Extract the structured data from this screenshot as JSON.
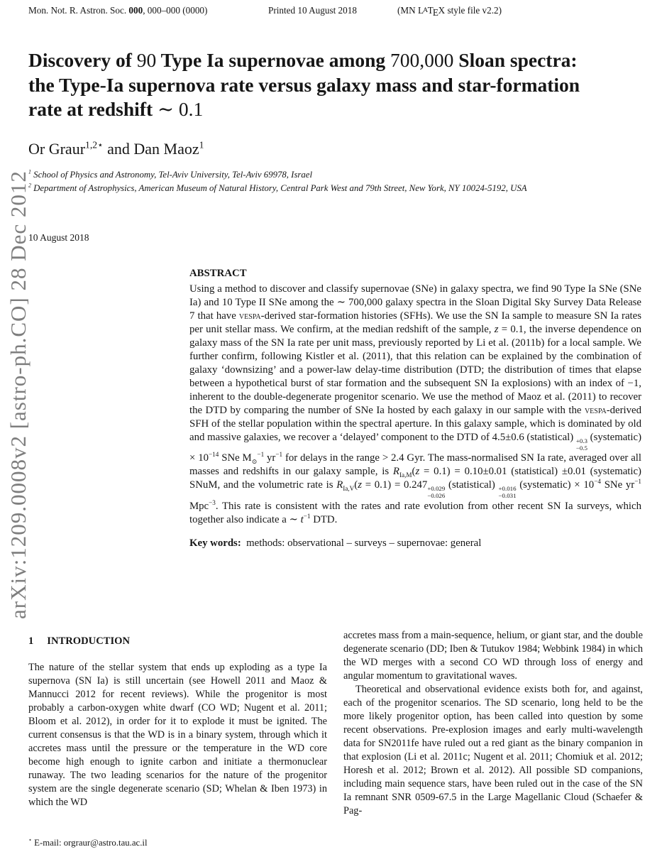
{
  "header": {
    "journal_ref": [
      {
        "t": "Mon. Not. R. Astron. Soc. "
      },
      {
        "t": "000",
        "s": "b"
      },
      {
        "t": ", 000–000 (0000)"
      }
    ],
    "printed": "Printed 10 August 2018",
    "style_note": [
      {
        "t": "(MN L"
      },
      {
        "t": "A",
        "s": "lA"
      },
      {
        "t": "T"
      },
      {
        "t": "E",
        "s": "lE"
      },
      {
        "t": "X style file v2.2)"
      }
    ]
  },
  "sidebar_text": "arXiv:1209.0008v2  [astro-ph.CO]  28 Dec 2012",
  "title": [
    {
      "t": "Discovery of "
    },
    {
      "t": "90",
      "s": "mathnum"
    },
    {
      "t": " Type Ia supernovae among "
    },
    {
      "t": "700,000",
      "s": "mathnum"
    },
    {
      "t": " Sloan spectra: the Type-Ia supernova rate versus galaxy mass and star-formation rate at redshift "
    },
    {
      "t": "∼ 0.1",
      "s": "mathnum"
    }
  ],
  "authors": [
    {
      "t": "Or Graur"
    },
    {
      "t": "1,2⋆",
      "s": "sup"
    },
    {
      "t": " and Dan Maoz"
    },
    {
      "t": "1",
      "s": "sup"
    }
  ],
  "affiliations": [
    [
      {
        "t": "1",
        "s": "sup"
      },
      {
        "t": " School of Physics and Astronomy, Tel-Aviv University, Tel-Aviv 69978, Israel"
      }
    ],
    [
      {
        "t": "2",
        "s": "sup"
      },
      {
        "t": " Department of Astrophysics, American Museum of Natural History, Central Park West and 79th Street, New York, NY 10024-5192, USA"
      }
    ]
  ],
  "date": "10 August 2018",
  "abstract": {
    "label": "ABSTRACT",
    "body": [
      {
        "t": "Using a method to discover and classify supernovae (SNe) in galaxy spectra, we find 90 Type Ia SNe (SNe Ia) and 10 Type II SNe among the ∼ 700,000 galaxy spectra in the Sloan Digital Sky Survey Data Release 7 that have "
      },
      {
        "t": "vespa",
        "s": "sc"
      },
      {
        "t": "-derived star-formation histories (SFHs). We use the SN Ia sample to measure SN Ia rates per unit stellar mass. We confirm, at the median redshift of the sample, "
      },
      {
        "t": "z",
        "s": "it"
      },
      {
        "t": " = 0.1, the inverse dependence on galaxy mass of the SN Ia rate per unit mass, previously reported by Li et al. (2011b) for a local sample. We further confirm, following Kistler et al. (2011), that this relation can be explained by the combination of galaxy ‘downsizing’ and a power-law delay-time distribution (DTD; the distribution of times that elapse between a hypothetical burst of star formation and the subsequent SN Ia explosions) with an index of −1, inherent to the double-degenerate progenitor scenario. We use the method of Maoz et al. (2011) to recover the DTD by comparing the number of SNe Ia hosted by each galaxy in our sample with the "
      },
      {
        "t": "vespa",
        "s": "sc"
      },
      {
        "t": "-derived SFH of the stellar population within the spectral aperture. In this galaxy sample, which is dominated by old and massive galaxies, we recover a ‘delayed’ component to the DTD of 4.5±0.6 (statistical) "
      },
      {
        "t": "+0.3|−0.5",
        "s": "stack"
      },
      {
        "t": " (systematic) × 10"
      },
      {
        "t": "−14",
        "s": "sup"
      },
      {
        "t": " SNe M"
      },
      {
        "t": "⊙",
        "s": "sub"
      },
      {
        "t": "−1",
        "s": "sup"
      },
      {
        "t": " yr"
      },
      {
        "t": "−1",
        "s": "sup"
      },
      {
        "t": " for delays in the range > 2.4 Gyr. The mass-normalised SN Ia rate, averaged over all masses and redshifts in our galaxy sample, is "
      },
      {
        "t": "R",
        "s": "it"
      },
      {
        "t": "Ia,M",
        "s": "sub"
      },
      {
        "t": "("
      },
      {
        "t": "z",
        "s": "it"
      },
      {
        "t": " = 0.1) = 0.10±0.01 (statistical) ±0.01 (systematic) SNuM, and the volumetric rate is "
      },
      {
        "t": "R",
        "s": "it"
      },
      {
        "t": "Ia,V",
        "s": "sub"
      },
      {
        "t": "("
      },
      {
        "t": "z",
        "s": "it"
      },
      {
        "t": " = 0.1) = 0.247"
      },
      {
        "t": "+0.029|−0.026",
        "s": "stack"
      },
      {
        "t": " (statistical) "
      },
      {
        "t": "+0.016|−0.031",
        "s": "stack"
      },
      {
        "t": " (systematic) × 10"
      },
      {
        "t": "−4",
        "s": "sup"
      },
      {
        "t": " SNe yr"
      },
      {
        "t": "−1",
        "s": "sup"
      },
      {
        "t": " Mpc"
      },
      {
        "t": "−3",
        "s": "sup"
      },
      {
        "t": ". This rate is consistent with the rates and rate evolution from other recent SN Ia surveys, which together also indicate a ∼ "
      },
      {
        "t": "t",
        "s": "it"
      },
      {
        "t": "−1",
        "s": "sup"
      },
      {
        "t": " DTD."
      }
    ],
    "keywords": [
      {
        "t": "Key words:",
        "s": "b"
      },
      {
        "t": " methods: observational – surveys – supernovae: general"
      }
    ]
  },
  "sections": {
    "intro": {
      "number": "1",
      "heading": "INTRODUCTION",
      "col1": [
        "The nature of the stellar system that ends up exploding as a type Ia supernova (SN Ia) is still uncertain (see Howell 2011 and Maoz & Mannucci 2012 for recent reviews). While the progenitor is most probably a carbon-oxygen white dwarf (CO WD; Nugent et al. 2011; Bloom et al. 2012), in order for it to explode it must be ignited. The current consensus is that the WD is in a binary system, through which it accretes mass until the pressure or the temperature in the WD core become high enough to ignite carbon and initiate a thermonuclear runaway. The two leading scenarios for the nature of the progenitor system are the single degenerate scenario (SD; Whelan & Iben 1973) in which the WD"
      ],
      "col2": [
        "accretes mass from a main-sequence, helium, or giant star, and the double degenerate scenario (DD; Iben & Tutukov 1984; Webbink 1984) in which the WD merges with a second CO WD through loss of energy and angular momentum to gravitational waves.",
        "Theoretical and observational evidence exists both for, and against, each of the progenitor scenarios. The SD scenario, long held to be the more likely progenitor option, has been called into question by some recent observations. Pre-explosion images and early multi-wavelength data for SN2011fe have ruled out a red giant as the binary companion in that explosion (Li et al. 2011c; Nugent et al. 2011; Chomiuk et al. 2012; Horesh et al. 2012; Brown et al. 2012). All possible SD companions, including main sequence stars, have been ruled out in the case of the SN Ia remnant SNR 0509-67.5 in the Large Magellanic Cloud (Schaefer & Pag-"
      ]
    }
  },
  "footnote": [
    {
      "t": "⋆",
      "s": "sup"
    },
    {
      "t": " E-mail: orgraur@astro.tau.ac.il"
    }
  ]
}
